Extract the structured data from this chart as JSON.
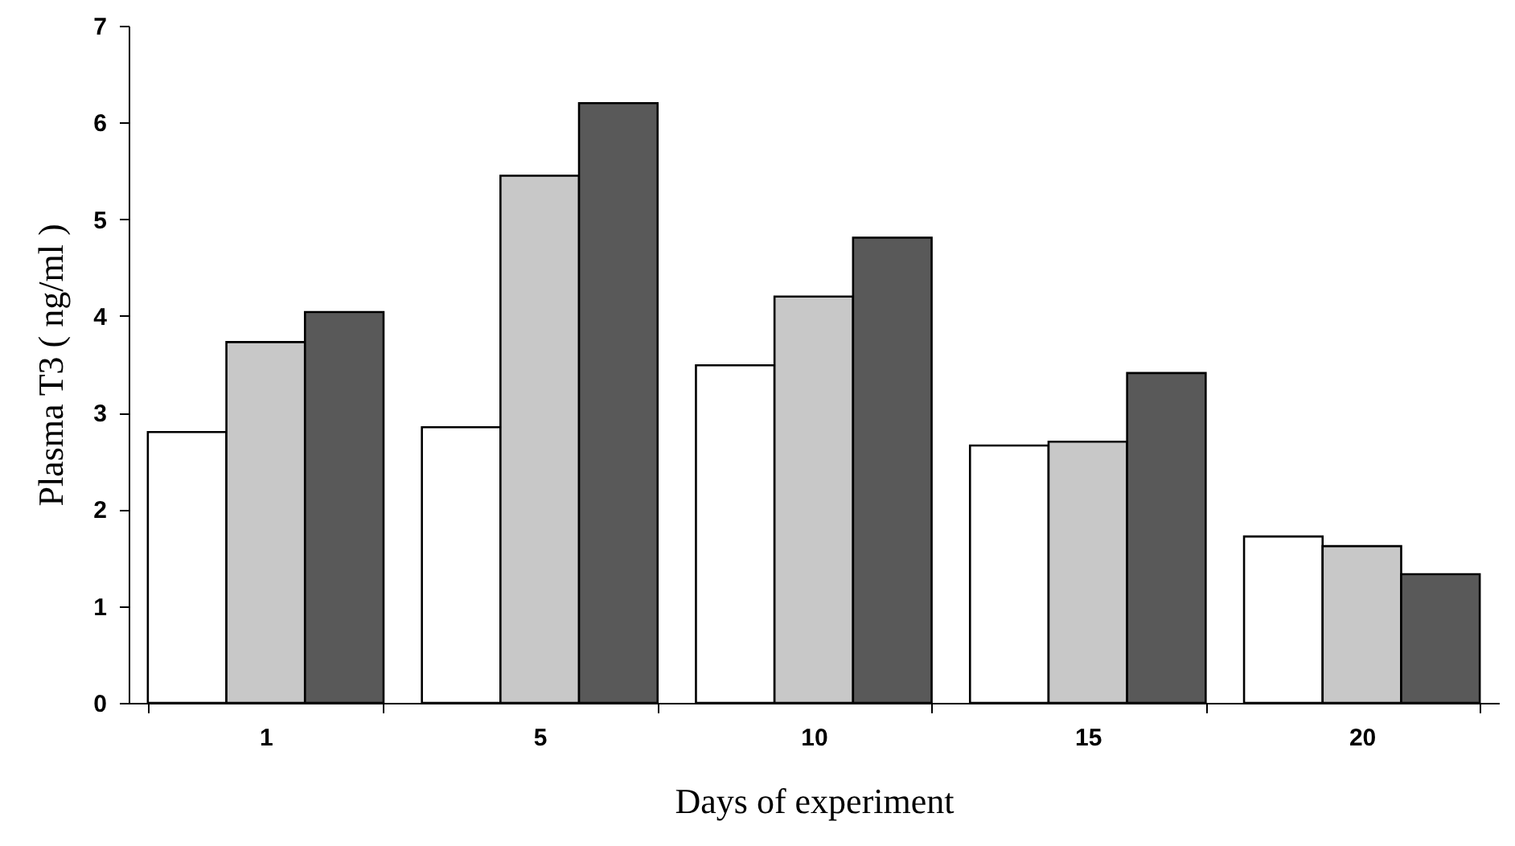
{
  "chart_data": {
    "type": "bar",
    "xlabel": "Days of experiment",
    "ylabel": "Plasma T3 ( ng/ml )",
    "categories": [
      "1",
      "5",
      "10",
      "15",
      "20"
    ],
    "series": [
      {
        "color": "#ffffff",
        "values": [
          2.8,
          2.85,
          3.49,
          2.66,
          1.72
        ]
      },
      {
        "color": "#c8c8c8",
        "values": [
          3.73,
          5.45,
          4.2,
          2.7,
          1.62
        ]
      },
      {
        "color": "#595959",
        "values": [
          4.04,
          6.2,
          4.81,
          3.41,
          1.33
        ]
      }
    ],
    "ylim": [
      0,
      7
    ],
    "yticks": [
      0,
      1,
      2,
      3,
      4,
      5,
      6,
      7
    ],
    "grid": false,
    "legend": false
  }
}
